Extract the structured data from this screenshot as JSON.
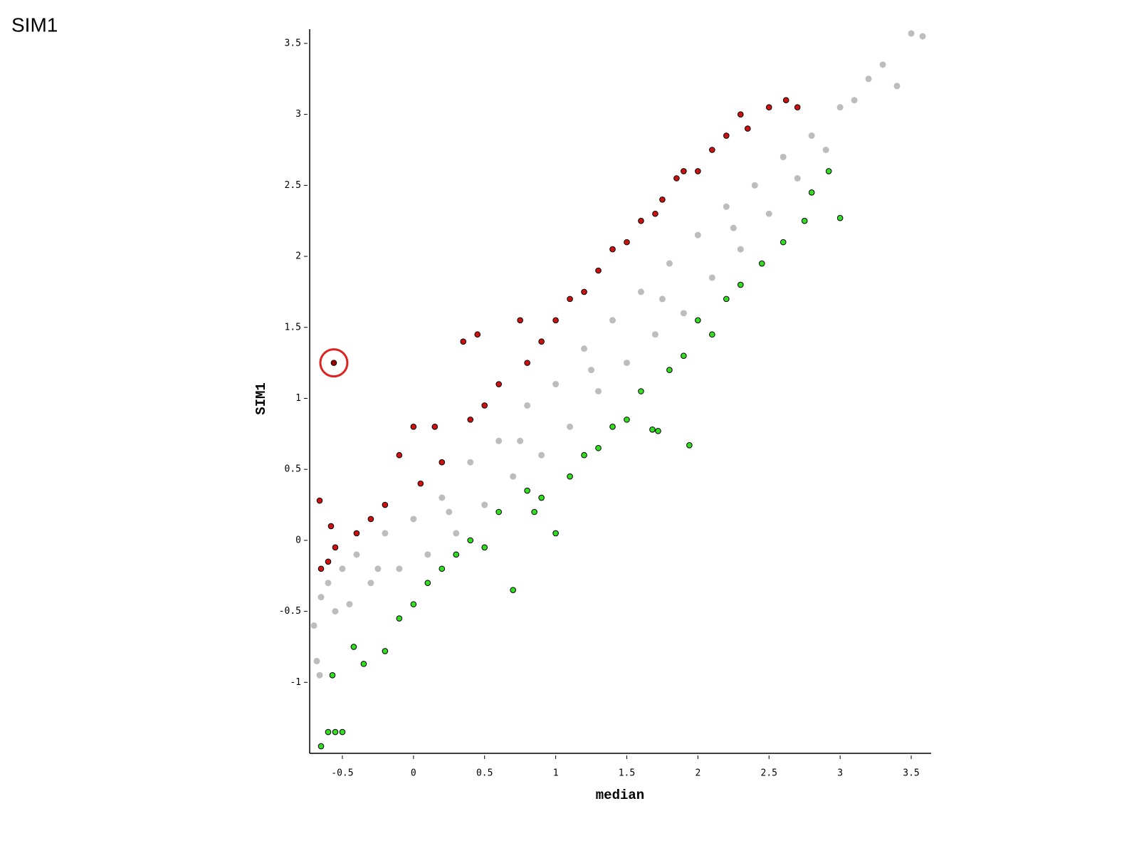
{
  "chart_data": {
    "type": "scatter",
    "title": "SIM1",
    "x_label": "median",
    "y_label": "SIM1",
    "xlim": [
      -0.73,
      3.64
    ],
    "ylim": [
      -1.5,
      3.6
    ],
    "xticks": [
      -0.5,
      0,
      0.5,
      1,
      1.5,
      2,
      2.5,
      3,
      3.5
    ],
    "yticks": [
      -1,
      -0.5,
      0,
      0.5,
      1,
      1.5,
      2,
      2.5,
      3,
      3.5
    ],
    "series": [
      {
        "color": "#bdbdbd",
        "x": [
          -0.7,
          -0.68,
          -0.65,
          -0.6,
          -0.55,
          -0.5,
          -0.45,
          -0.4,
          -0.3,
          -0.2,
          -0.1,
          0,
          0.1,
          0.2,
          0.3,
          0.4,
          0.5,
          0.6,
          0.7,
          0.8,
          0.9,
          1.0,
          1.1,
          1.2,
          1.3,
          1.4,
          1.5,
          1.6,
          1.7,
          1.8,
          1.9,
          2.0,
          2.1,
          2.2,
          2.3,
          2.4,
          2.5,
          2.6,
          2.7,
          2.8,
          2.9,
          3.0,
          3.1,
          3.2,
          3.3,
          3.5,
          3.58,
          3.4,
          -0.66,
          0.75,
          1.25,
          1.75,
          2.25,
          0.25,
          -0.25
        ],
        "values": [
          -0.6,
          -0.85,
          -0.4,
          -0.3,
          -0.5,
          -0.2,
          -0.45,
          -0.1,
          -0.3,
          0.05,
          -0.2,
          0.15,
          -0.1,
          0.3,
          0.05,
          0.55,
          0.25,
          0.7,
          0.45,
          0.95,
          0.6,
          1.1,
          0.8,
          1.35,
          1.05,
          1.55,
          1.25,
          1.75,
          1.45,
          1.95,
          1.6,
          2.15,
          1.85,
          2.35,
          2.05,
          2.5,
          2.3,
          2.7,
          2.55,
          2.85,
          2.75,
          3.05,
          3.1,
          3.25,
          3.35,
          3.57,
          3.55,
          3.2,
          -0.95,
          0.7,
          1.2,
          1.7,
          2.2,
          0.2,
          -0.2
        ]
      },
      {
        "color": "#cc1111",
        "x": [
          -0.66,
          -0.6,
          -0.65,
          -0.58,
          -0.55,
          -0.4,
          -0.3,
          -0.2,
          -0.1,
          0,
          0.05,
          0.15,
          0.2,
          0.35,
          0.45,
          0.4,
          0.5,
          0.6,
          0.75,
          0.8,
          0.9,
          1.0,
          1.1,
          1.2,
          1.3,
          1.4,
          1.5,
          1.6,
          1.75,
          1.85,
          1.9,
          2.0,
          2.1,
          2.2,
          2.35,
          2.5,
          2.62,
          2.7,
          2.3,
          1.7
        ],
        "values": [
          0.28,
          -0.15,
          -0.2,
          0.1,
          -0.05,
          0.05,
          0.15,
          0.25,
          0.6,
          0.8,
          0.4,
          0.8,
          0.55,
          1.4,
          1.45,
          0.85,
          0.95,
          1.1,
          1.55,
          1.25,
          1.4,
          1.55,
          1.7,
          1.75,
          1.9,
          2.05,
          2.1,
          2.25,
          2.4,
          2.55,
          2.6,
          2.6,
          2.75,
          2.85,
          2.9,
          3.05,
          3.1,
          3.05,
          3.0,
          2.3
        ]
      },
      {
        "color": "#33dd22",
        "x": [
          -0.65,
          -0.6,
          -0.55,
          -0.57,
          -0.5,
          -0.42,
          -0.35,
          -0.2,
          -0.1,
          0,
          0.1,
          0.2,
          0.3,
          0.4,
          0.5,
          0.6,
          0.7,
          0.8,
          0.9,
          1.0,
          1.1,
          1.2,
          1.3,
          1.4,
          1.5,
          1.6,
          1.68,
          1.72,
          1.94,
          1.8,
          1.9,
          2.0,
          2.1,
          2.2,
          2.3,
          2.45,
          2.6,
          2.75,
          2.8,
          3.0,
          2.92,
          0.85
        ],
        "values": [
          -1.45,
          -1.35,
          -1.35,
          -0.95,
          -1.35,
          -0.75,
          -0.87,
          -0.78,
          -0.55,
          -0.45,
          -0.3,
          -0.2,
          -0.1,
          0.0,
          -0.05,
          0.2,
          -0.35,
          0.35,
          0.3,
          0.05,
          0.45,
          0.6,
          0.65,
          0.8,
          0.85,
          1.05,
          0.78,
          0.77,
          0.67,
          1.2,
          1.3,
          1.55,
          1.45,
          1.7,
          1.8,
          1.95,
          2.1,
          2.25,
          2.45,
          2.27,
          2.6,
          0.2
        ]
      },
      {
        "color": "#990000",
        "ring_color": "#dd2222",
        "x": [
          -0.56
        ],
        "values": [
          1.25
        ]
      }
    ]
  }
}
